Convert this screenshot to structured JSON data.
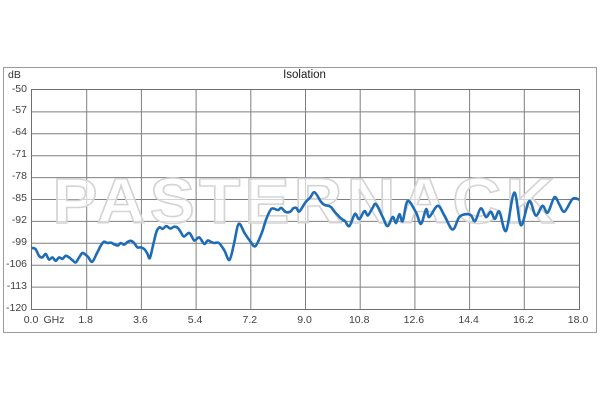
{
  "chart": {
    "title": "Isolation",
    "y_unit": "dB",
    "x_unit": "GHz",
    "watermark": "PASTERNACK",
    "y_ticks": [
      "-50",
      "-57",
      "-64",
      "-71",
      "-78",
      "-85",
      "-92",
      "-99",
      "-106",
      "-113",
      "-120"
    ],
    "x_ticks": [
      "0.0",
      "1.8",
      "3.6",
      "5.4",
      "7.2",
      "9.0",
      "10.8",
      "12.6",
      "14.4",
      "16.2",
      "18.0"
    ],
    "colors": {
      "line": "#1e6cb5",
      "grid": "#7f7f7f",
      "plot_border": "#6f6f6f",
      "frame_border": "#9b9b9b",
      "tick_text": "#404040",
      "watermark_fill": "#ffffff",
      "watermark_stroke": "#d4d4d4"
    }
  },
  "chart_data": {
    "type": "line",
    "title": "Isolation",
    "xlabel": "GHz",
    "ylabel": "dB",
    "xlim": [
      0,
      18
    ],
    "ylim": [
      -120,
      -50
    ],
    "x_tick_step": 1.8,
    "y_tick_step": 7,
    "grid": true,
    "legend": false,
    "series": [
      {
        "name": "Isolation",
        "color": "#1e6cb5",
        "points": [
          [
            0.0,
            -100.5
          ],
          [
            0.12,
            -100.9
          ],
          [
            0.23,
            -103.0
          ],
          [
            0.34,
            -103.5
          ],
          [
            0.45,
            -102.4
          ],
          [
            0.56,
            -104.2
          ],
          [
            0.67,
            -103.5
          ],
          [
            0.78,
            -104.6
          ],
          [
            0.89,
            -103.5
          ],
          [
            1.0,
            -104.0
          ],
          [
            1.11,
            -103.0
          ],
          [
            1.22,
            -103.5
          ],
          [
            1.33,
            -104.4
          ],
          [
            1.44,
            -105.1
          ],
          [
            1.55,
            -103.5
          ],
          [
            1.66,
            -102.1
          ],
          [
            1.77,
            -102.7
          ],
          [
            1.85,
            -103.4
          ],
          [
            1.98,
            -104.9
          ],
          [
            2.15,
            -101.9
          ],
          [
            2.26,
            -99.8
          ],
          [
            2.37,
            -98.5
          ],
          [
            2.48,
            -98.9
          ],
          [
            2.6,
            -98.8
          ],
          [
            2.72,
            -99.4
          ],
          [
            2.83,
            -99.7
          ],
          [
            2.92,
            -98.9
          ],
          [
            3.03,
            -99.4
          ],
          [
            3.14,
            -98.6
          ],
          [
            3.25,
            -98.2
          ],
          [
            3.36,
            -98.9
          ],
          [
            3.47,
            -100.3
          ],
          [
            3.58,
            -100.3
          ],
          [
            3.7,
            -100.9
          ],
          [
            3.8,
            -102.4
          ],
          [
            3.88,
            -103.7
          ],
          [
            4.0,
            -98.9
          ],
          [
            4.1,
            -95.2
          ],
          [
            4.2,
            -93.9
          ],
          [
            4.3,
            -94.4
          ],
          [
            4.42,
            -93.5
          ],
          [
            4.55,
            -94.3
          ],
          [
            4.68,
            -93.7
          ],
          [
            4.8,
            -94.1
          ],
          [
            4.9,
            -95.5
          ],
          [
            5.0,
            -96.8
          ],
          [
            5.18,
            -95.7
          ],
          [
            5.34,
            -98.1
          ],
          [
            5.5,
            -97.1
          ],
          [
            5.67,
            -99.2
          ],
          [
            5.78,
            -98.1
          ],
          [
            5.9,
            -98.6
          ],
          [
            6.0,
            -98.9
          ],
          [
            6.15,
            -98.9
          ],
          [
            6.33,
            -101.3
          ],
          [
            6.5,
            -104.3
          ],
          [
            6.65,
            -99.0
          ],
          [
            6.8,
            -92.8
          ],
          [
            7.0,
            -95.8
          ],
          [
            7.2,
            -98.6
          ],
          [
            7.35,
            -99.9
          ],
          [
            7.55,
            -96.0
          ],
          [
            7.7,
            -91.5
          ],
          [
            7.85,
            -88.3
          ],
          [
            7.95,
            -87.9
          ],
          [
            8.1,
            -88.4
          ],
          [
            8.2,
            -87.7
          ],
          [
            8.35,
            -89.0
          ],
          [
            8.5,
            -88.9
          ],
          [
            8.6,
            -87.8
          ],
          [
            8.7,
            -87.7
          ],
          [
            8.8,
            -88.8
          ],
          [
            9.0,
            -85.9
          ],
          [
            9.15,
            -84.4
          ],
          [
            9.3,
            -82.7
          ],
          [
            9.5,
            -85.6
          ],
          [
            9.62,
            -86.7
          ],
          [
            9.75,
            -87.0
          ],
          [
            9.85,
            -87.5
          ],
          [
            9.95,
            -88.8
          ],
          [
            10.1,
            -90.4
          ],
          [
            10.2,
            -91.3
          ],
          [
            10.3,
            -91.9
          ],
          [
            10.44,
            -93.5
          ],
          [
            10.6,
            -90.0
          ],
          [
            10.66,
            -89.7
          ],
          [
            10.77,
            -91.3
          ],
          [
            10.94,
            -88.7
          ],
          [
            11.05,
            -90.1
          ],
          [
            11.2,
            -87.8
          ],
          [
            11.32,
            -86.5
          ],
          [
            11.54,
            -90.6
          ],
          [
            11.7,
            -93.5
          ],
          [
            11.87,
            -90.6
          ],
          [
            11.98,
            -92.5
          ],
          [
            12.09,
            -89.7
          ],
          [
            12.2,
            -91.9
          ],
          [
            12.36,
            -85.5
          ],
          [
            12.64,
            -89.2
          ],
          [
            12.8,
            -92.8
          ],
          [
            12.97,
            -88.1
          ],
          [
            13.07,
            -90.6
          ],
          [
            13.35,
            -87.0
          ],
          [
            13.57,
            -90.1
          ],
          [
            13.84,
            -94.6
          ],
          [
            14.06,
            -90.6
          ],
          [
            14.28,
            -89.7
          ],
          [
            14.45,
            -90.1
          ],
          [
            14.58,
            -91.9
          ],
          [
            14.77,
            -87.8
          ],
          [
            14.94,
            -90.6
          ],
          [
            15.1,
            -88.9
          ],
          [
            15.23,
            -91.2
          ],
          [
            15.38,
            -88.9
          ],
          [
            15.6,
            -95.0
          ],
          [
            15.87,
            -82.8
          ],
          [
            16.09,
            -93.2
          ],
          [
            16.36,
            -85.5
          ],
          [
            16.58,
            -90.1
          ],
          [
            16.8,
            -87.0
          ],
          [
            16.97,
            -89.2
          ],
          [
            17.19,
            -84.3
          ],
          [
            17.35,
            -86.5
          ],
          [
            17.52,
            -88.9
          ],
          [
            17.79,
            -84.8
          ],
          [
            18.0,
            -85.0
          ]
        ]
      }
    ]
  }
}
